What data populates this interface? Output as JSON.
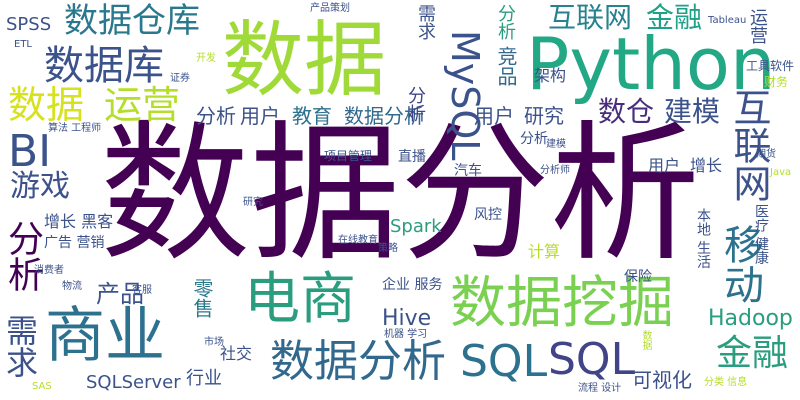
{
  "words": [
    {
      "text": "数据分析",
      "color": "#440154"
    },
    {
      "text": "数据",
      "color": "#a0da39"
    },
    {
      "text": "Python",
      "color": "#22a884"
    },
    {
      "text": "电商",
      "color": "#2a9d7f"
    },
    {
      "text": "商业",
      "color": "#2c728e"
    },
    {
      "text": "数据挖掘",
      "color": "#7ad151"
    },
    {
      "text": "数据分析",
      "color": "#31688e"
    },
    {
      "text": "数据库",
      "color": "#3b528b"
    },
    {
      "text": "数据",
      "color": "#d6e21e"
    },
    {
      "text": "运营",
      "color": "#b5de2b"
    },
    {
      "text": "SQL",
      "color": "#2c728e"
    },
    {
      "text": "SQL",
      "color": "#414487"
    },
    {
      "text": "BI",
      "color": "#3b528b"
    },
    {
      "text": "互联网",
      "color": "#3b528b"
    },
    {
      "text": "移动",
      "color": "#2c728e"
    },
    {
      "text": "MySQL",
      "color": "#3b528b"
    },
    {
      "text": "金融",
      "color": "#2a9d7f"
    },
    {
      "text": "数据仓库",
      "color": "#2a788e"
    },
    {
      "text": "互联网",
      "color": "#26828e"
    },
    {
      "text": "金融",
      "color": "#1fa188"
    },
    {
      "text": "游戏",
      "color": "#3b528b"
    },
    {
      "text": "分析",
      "color": "#440154"
    },
    {
      "text": "需求",
      "color": "#3b528b"
    },
    {
      "text": "数仓",
      "color": "#472d7b"
    },
    {
      "text": "建模",
      "color": "#3b528b"
    },
    {
      "text": "分析",
      "color": "#3b528b"
    },
    {
      "text": "用户",
      "color": "#3b528b"
    },
    {
      "text": "教育",
      "color": "#2c728e"
    },
    {
      "text": "数据分析",
      "color": "#31688e"
    },
    {
      "text": "产品",
      "color": "#3b528b"
    },
    {
      "text": "Hadoop",
      "color": "#2a9d7f"
    },
    {
      "text": "Hive",
      "color": "#3b528b"
    },
    {
      "text": "零售",
      "color": "#2a788e"
    },
    {
      "text": "可视化",
      "color": "#3b528b"
    },
    {
      "text": "用户",
      "color": "#3b528b"
    },
    {
      "text": "研究",
      "color": "#3b528b"
    },
    {
      "text": "竞品",
      "color": "#31688e"
    },
    {
      "text": "架构",
      "color": "#3b528b"
    },
    {
      "text": "分析",
      "color": "#414487"
    },
    {
      "text": "需求",
      "color": "#3b528b"
    },
    {
      "text": "分析",
      "color": "#2a9d7f"
    },
    {
      "text": "运营",
      "color": "#3b528b"
    },
    {
      "text": "SPSS",
      "color": "#3b528b"
    },
    {
      "text": "Spark",
      "color": "#2a9d7f"
    },
    {
      "text": "SQLServer",
      "color": "#3b528b"
    },
    {
      "text": "行业",
      "color": "#3b528b"
    },
    {
      "text": "社交",
      "color": "#3b528b"
    },
    {
      "text": "用户",
      "color": "#3b528b"
    },
    {
      "text": "增长",
      "color": "#3b528b"
    },
    {
      "text": "计算",
      "color": "#b5de2b"
    },
    {
      "text": "企业 服务",
      "color": "#3b528b"
    },
    {
      "text": "本地 生活",
      "color": "#3b528b"
    },
    {
      "text": "医疗 健康",
      "color": "#3b528b"
    },
    {
      "text": "分析",
      "color": "#3b528b"
    },
    {
      "text": "直播",
      "color": "#3b528b"
    },
    {
      "text": "汽车",
      "color": "#3b528b"
    },
    {
      "text": "风控",
      "color": "#3b528b"
    },
    {
      "text": "增长 黑客",
      "color": "#3b528b"
    },
    {
      "text": "广告 营销",
      "color": "#3b528b"
    },
    {
      "text": "保险",
      "color": "#3b528b"
    },
    {
      "text": "工具软件",
      "color": "#3b528b"
    },
    {
      "text": "财务",
      "color": "#b5de2b"
    },
    {
      "text": "项目管理",
      "color": "#3b528b"
    },
    {
      "text": "Tableau",
      "color": "#3b528b"
    },
    {
      "text": "产品策划",
      "color": "#3b528b"
    },
    {
      "text": "ETL",
      "color": "#3b528b"
    },
    {
      "text": "开发",
      "color": "#b5de2b"
    },
    {
      "text": "证券",
      "color": "#3b528b"
    },
    {
      "text": "算法 工程师",
      "color": "#3b528b"
    },
    {
      "text": "建模",
      "color": "#3b528b"
    },
    {
      "text": "分析师",
      "color": "#3b528b"
    },
    {
      "text": "期货",
      "color": "#3b528b"
    },
    {
      "text": "Java",
      "color": "#b5de2b"
    },
    {
      "text": "研究",
      "color": "#3b528b"
    },
    {
      "text": "在线教育",
      "color": "#3b528b"
    },
    {
      "text": "策略",
      "color": "#3b528b"
    },
    {
      "text": "消费者",
      "color": "#3b528b"
    },
    {
      "text": "物流",
      "color": "#3b528b"
    },
    {
      "text": "客服",
      "color": "#3b528b"
    },
    {
      "text": "机器 学习",
      "color": "#3b528b"
    },
    {
      "text": "市场",
      "color": "#3b528b"
    },
    {
      "text": "SAS",
      "color": "#b5de2b"
    },
    {
      "text": "流程 设计",
      "color": "#3b528b"
    },
    {
      "text": "分类 信息",
      "color": "#b5de2b"
    },
    {
      "text": "数据",
      "color": "#b5de2b"
    }
  ]
}
